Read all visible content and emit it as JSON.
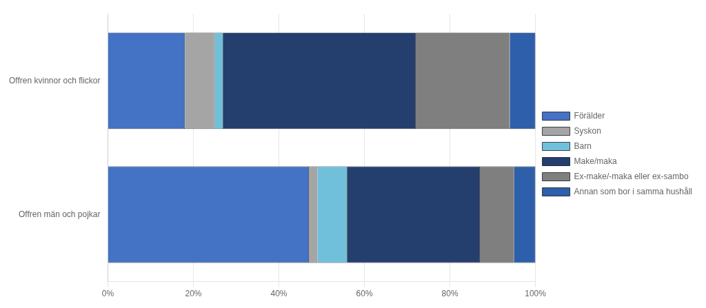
{
  "chart_data": {
    "type": "bar",
    "orientation": "horizontal",
    "stacked": true,
    "categories": [
      "Offren kvinnor och flickor",
      "Offren män och pojkar"
    ],
    "series": [
      {
        "name": "Förälder",
        "color": "#4472C4",
        "values": [
          18,
          47
        ]
      },
      {
        "name": "Syskon",
        "color": "#A5A5A5",
        "values": [
          7,
          2
        ]
      },
      {
        "name": "Barn",
        "color": "#70C0DC",
        "values": [
          2,
          7
        ]
      },
      {
        "name": "Make/maka",
        "color": "#243F6E",
        "values": [
          45,
          31
        ]
      },
      {
        "name": "Ex-make/-maka eller ex-sambo",
        "color": "#7F7F7F",
        "values": [
          22,
          8
        ]
      },
      {
        "name": "Annan som bor i samma hushåll",
        "color": "#2E5FAA",
        "values": [
          6,
          5
        ]
      }
    ],
    "xlim": [
      0,
      100
    ],
    "xticks": [
      {
        "value": 0,
        "label": "0%"
      },
      {
        "value": 20,
        "label": "20%"
      },
      {
        "value": 40,
        "label": "40%"
      },
      {
        "value": 60,
        "label": "60%"
      },
      {
        "value": 80,
        "label": "80%"
      },
      {
        "value": 100,
        "label": "100%"
      }
    ],
    "grid": "x",
    "legend": "right"
  }
}
